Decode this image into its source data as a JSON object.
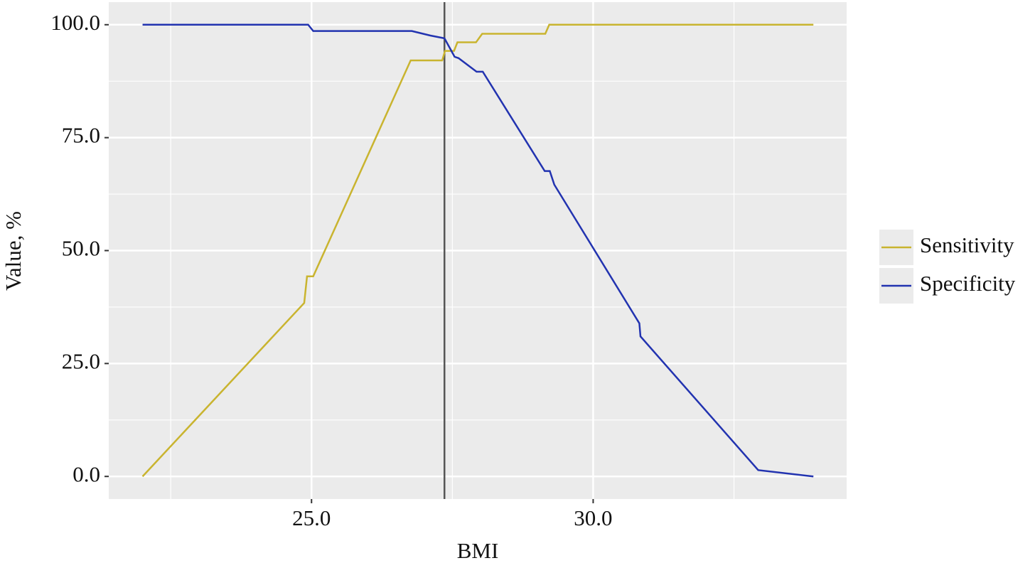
{
  "chart_data": {
    "type": "line",
    "xlabel": "BMI",
    "ylabel": "Value, %",
    "xlim": [
      21.4,
      34.5
    ],
    "ylim": [
      -5,
      105
    ],
    "xticks": [
      {
        "value": 25,
        "label": "25.0"
      },
      {
        "value": 30,
        "label": "30.0"
      }
    ],
    "yticks": [
      {
        "value": 0,
        "label": "0.0"
      },
      {
        "value": 25,
        "label": "25.0"
      },
      {
        "value": 50,
        "label": "50.0"
      },
      {
        "value": 75,
        "label": "75.0"
      },
      {
        "value": 100,
        "label": "100.0"
      }
    ],
    "x_minor_ticks": [
      22.5,
      27.5,
      32.5
    ],
    "y_minor_ticks": [
      12.5,
      37.5,
      62.5,
      87.5
    ],
    "grid": true,
    "vline": 27.36,
    "legend": "right",
    "series": [
      {
        "name": "Sensitivity",
        "color": "#c9b42f",
        "x": [
          22.0,
          24.87,
          24.92,
          25.03,
          26.76,
          27.32,
          27.37,
          27.53,
          27.59,
          27.92,
          28.03,
          29.15,
          29.22,
          33.91
        ],
        "values": [
          0,
          38.4,
          44.3,
          44.3,
          92.1,
          92.1,
          94.2,
          94.2,
          96.1,
          96.1,
          98.0,
          98.0,
          100,
          100
        ]
      },
      {
        "name": "Specificity",
        "color": "#2233b0",
        "x": [
          22.0,
          24.94,
          25.03,
          26.78,
          27.11,
          27.36,
          27.54,
          27.61,
          27.93,
          28.04,
          29.14,
          29.23,
          29.31,
          30.82,
          30.84,
          32.93,
          33.91
        ],
        "values": [
          100,
          100,
          98.6,
          98.6,
          97.6,
          97.0,
          92.9,
          92.6,
          89.6,
          89.6,
          67.6,
          67.6,
          64.6,
          33.9,
          31.0,
          1.4,
          0
        ]
      }
    ]
  }
}
